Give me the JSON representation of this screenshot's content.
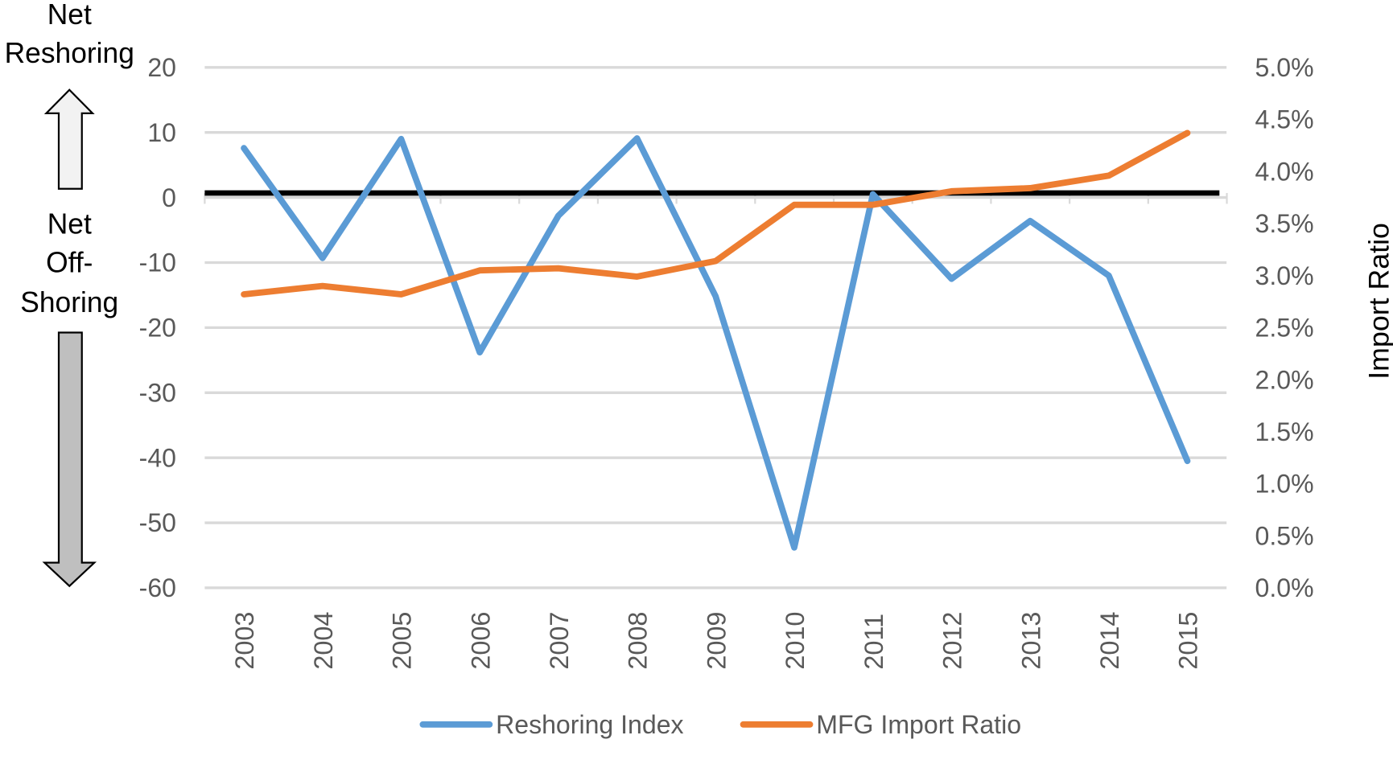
{
  "chart_data": {
    "type": "line",
    "title": "",
    "x": [
      "2003",
      "2004",
      "2005",
      "2006",
      "2007",
      "2008",
      "2009",
      "2010",
      "2011",
      "2012",
      "2013",
      "2014",
      "2015"
    ],
    "series": [
      {
        "name": "Reshoring Index",
        "axis": "left",
        "color": "#5B9BD5",
        "values": [
          7.6,
          -9.3,
          9.0,
          -23.8,
          -2.8,
          9.1,
          -15.2,
          -53.8,
          0.5,
          -12.5,
          -3.6,
          -12.0,
          -40.5
        ]
      },
      {
        "name": "MFG Import Ratio",
        "axis": "right",
        "color": "#ED7D31",
        "values": [
          2.82,
          2.9,
          2.82,
          3.05,
          3.07,
          2.99,
          3.14,
          3.68,
          3.68,
          3.81,
          3.84,
          3.96,
          4.37
        ]
      }
    ],
    "y_left": {
      "range": [
        -60,
        20
      ],
      "ticks": [
        "20",
        "10",
        "0",
        "-10",
        "-20",
        "-30",
        "-40",
        "-50",
        "-60"
      ],
      "tick_values": [
        20,
        10,
        0,
        -10,
        -20,
        -30,
        -40,
        -50,
        -60
      ]
    },
    "y_right": {
      "label": "Import Ratio",
      "range": [
        0,
        5
      ],
      "ticks": [
        "5.0%",
        "4.5%",
        "4.0%",
        "3.5%",
        "3.0%",
        "2.5%",
        "2.0%",
        "1.5%",
        "1.0%",
        "0.5%",
        "0.0%"
      ],
      "tick_values": [
        5,
        4.5,
        4,
        3.5,
        3,
        2.5,
        2,
        1.5,
        1,
        0.5,
        0
      ]
    },
    "grid": true,
    "legend": "bottom",
    "zero_line_color": "#000000",
    "annotations": {
      "up": [
        "Net",
        "Reshoring"
      ],
      "down": [
        "Net",
        "Off-",
        "Shoring"
      ]
    }
  }
}
